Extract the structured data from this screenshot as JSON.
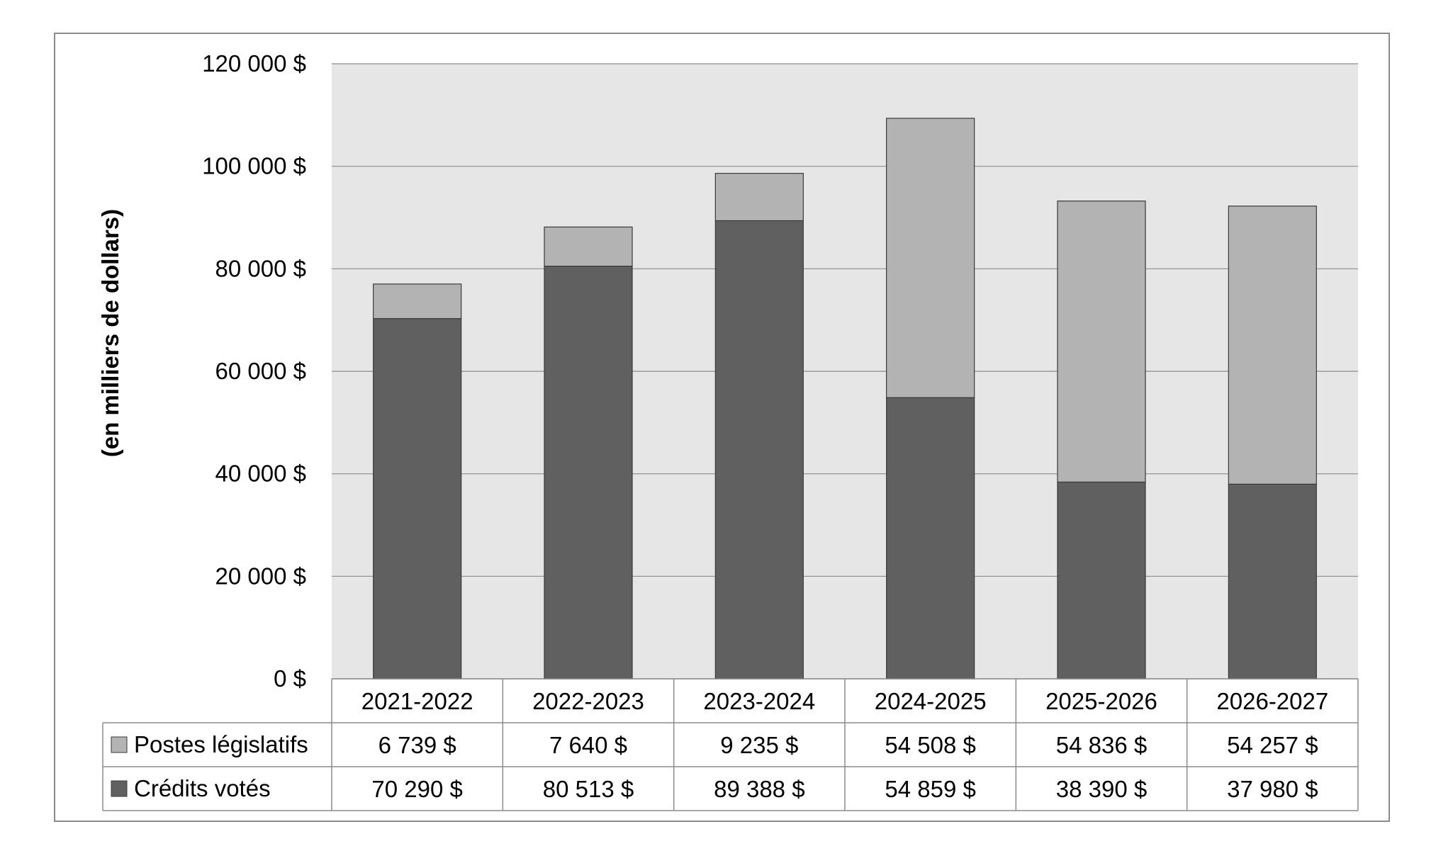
{
  "chart_data": {
    "type": "bar",
    "stacked": true,
    "ylabel": "(en milliers de dollars)",
    "ylim": [
      0,
      120000
    ],
    "yticks": [
      "0 $",
      "20 000 $",
      "40 000 $",
      "60 000 $",
      "80 000 $",
      "100 000 $",
      "120 000 $"
    ],
    "ytick_values": [
      0,
      20000,
      40000,
      60000,
      80000,
      100000,
      120000
    ],
    "grid": true,
    "categories": [
      "2021-2022",
      "2022-2023",
      "2023-2024",
      "2024-2025",
      "2025-2026",
      "2026-2027"
    ],
    "series": [
      {
        "name": "Crédits votés",
        "color": "#606060",
        "values": [
          70290,
          80513,
          89388,
          54859,
          38390,
          37980
        ],
        "labels": [
          "70 290 $",
          "80 513 $",
          "89 388 $",
          "54 859 $",
          "38 390 $",
          "37 980 $"
        ]
      },
      {
        "name": "Postes législatifs",
        "color": "#b3b3b3",
        "values": [
          6739,
          7640,
          9235,
          54508,
          54836,
          54257
        ],
        "labels": [
          "6 739 $",
          "7 640 $",
          "9 235 $",
          "54 508 $",
          "54 836 $",
          "54 257 $"
        ]
      }
    ],
    "data_table": true,
    "plot_background": "#e6e6e6"
  }
}
